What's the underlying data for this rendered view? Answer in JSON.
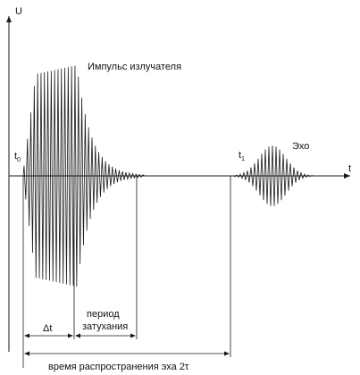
{
  "axes": {
    "y_label": "U",
    "x_label": "t"
  },
  "markers": {
    "t0": {
      "base": "t",
      "sub": "0"
    },
    "t1": {
      "base": "t",
      "sub": "1"
    }
  },
  "labels": {
    "emitter_pulse": "Импульс излучателя",
    "echo": "Эхо",
    "delta_t": "Δt",
    "damping_line1": "период",
    "damping_line2": "затухания",
    "echo_time": "время распространения эха 2τ"
  },
  "colors": {
    "line": "#1a1a1a",
    "text": "#111111"
  }
}
